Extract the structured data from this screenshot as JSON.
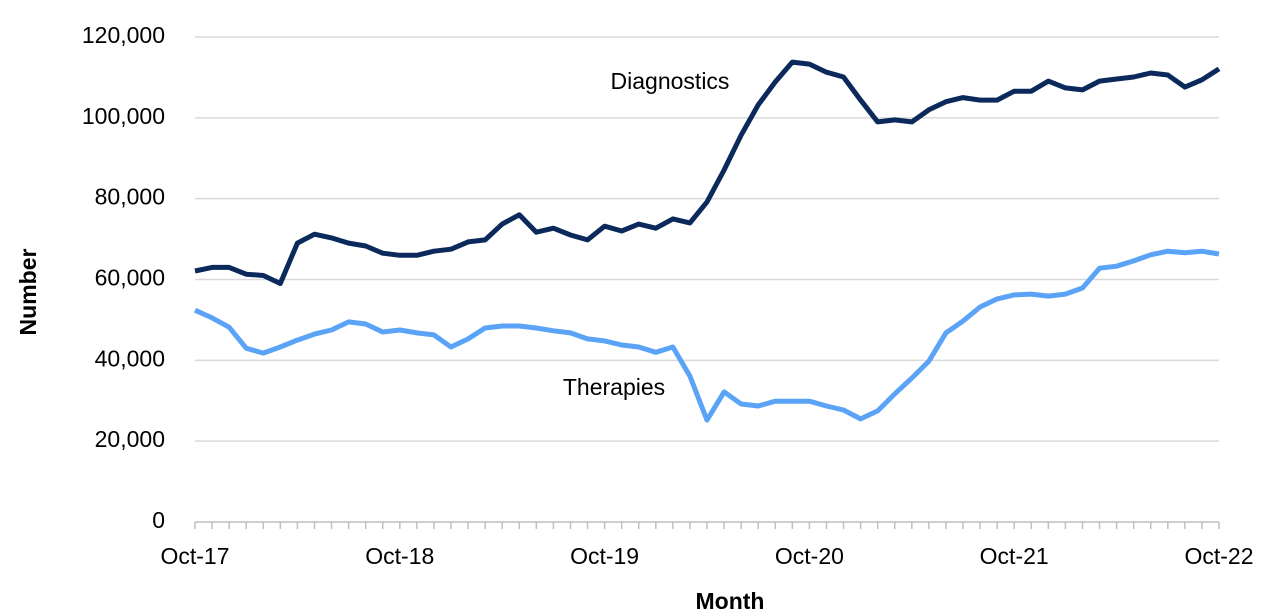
{
  "chart_data": {
    "type": "line",
    "x_label": "Month",
    "y_label": "Number",
    "categories": [
      "Oct-17",
      null,
      null,
      null,
      null,
      null,
      null,
      null,
      null,
      null,
      null,
      null,
      "Oct-18",
      null,
      null,
      null,
      null,
      null,
      null,
      null,
      null,
      null,
      null,
      null,
      "Oct-19",
      null,
      null,
      null,
      null,
      null,
      null,
      null,
      null,
      null,
      null,
      null,
      "Oct-20",
      null,
      null,
      null,
      null,
      null,
      null,
      null,
      null,
      null,
      null,
      null,
      "Oct-21",
      null,
      null,
      null,
      null,
      null,
      null,
      null,
      null,
      null,
      null,
      null,
      "Oct-22"
    ],
    "series": [
      {
        "name": "Diagnostics",
        "color": "#0b2a5b",
        "values": [
          62100,
          63000,
          63000,
          61300,
          61000,
          59000,
          69000,
          71200,
          70300,
          69000,
          68300,
          66500,
          66000,
          66000,
          67000,
          67500,
          69300,
          69800,
          73700,
          76000,
          71700,
          72700,
          71000,
          69800,
          73200,
          72000,
          73700,
          72700,
          75000,
          74000,
          79200,
          87100,
          95700,
          103200,
          108900,
          113800,
          113300,
          111300,
          110100,
          104400,
          99000,
          99500,
          99000,
          102000,
          104000,
          105000,
          104400,
          104400,
          106600,
          106600,
          109100,
          107400,
          106900,
          109100,
          109600,
          110100,
          111100,
          110600,
          107600,
          109400,
          112100
        ]
      },
      {
        "name": "Therapies",
        "color": "#5aa3f7",
        "values": [
          52400,
          50500,
          48200,
          43000,
          41800,
          43300,
          45000,
          46500,
          47500,
          49500,
          49000,
          47000,
          47500,
          46800,
          46300,
          43300,
          45300,
          48000,
          48500,
          48500,
          48000,
          47300,
          46800,
          45300,
          44800,
          43800,
          43300,
          42000,
          43300,
          36100,
          25200,
          32200,
          29200,
          28700,
          29900,
          29900,
          29900,
          28700,
          27700,
          25500,
          27500,
          31700,
          35600,
          39800,
          46800,
          49700,
          53200,
          55200,
          56200,
          56400,
          55900,
          56400,
          57900,
          62800,
          63300,
          64600,
          66100,
          67000,
          66600,
          67000,
          66300
        ]
      }
    ],
    "ylim": [
      0,
      120000
    ],
    "yticks": [
      0,
      {
        "value": 20000,
        "label": "20,000"
      },
      {
        "value": 40000,
        "label": "40,000"
      },
      {
        "value": 60000,
        "label": "60,000"
      },
      {
        "value": 80000,
        "label": "80,000"
      },
      {
        "value": 100000,
        "label": "100,000"
      },
      {
        "value": 120000,
        "label": "120,000"
      }
    ],
    "grid": true
  }
}
